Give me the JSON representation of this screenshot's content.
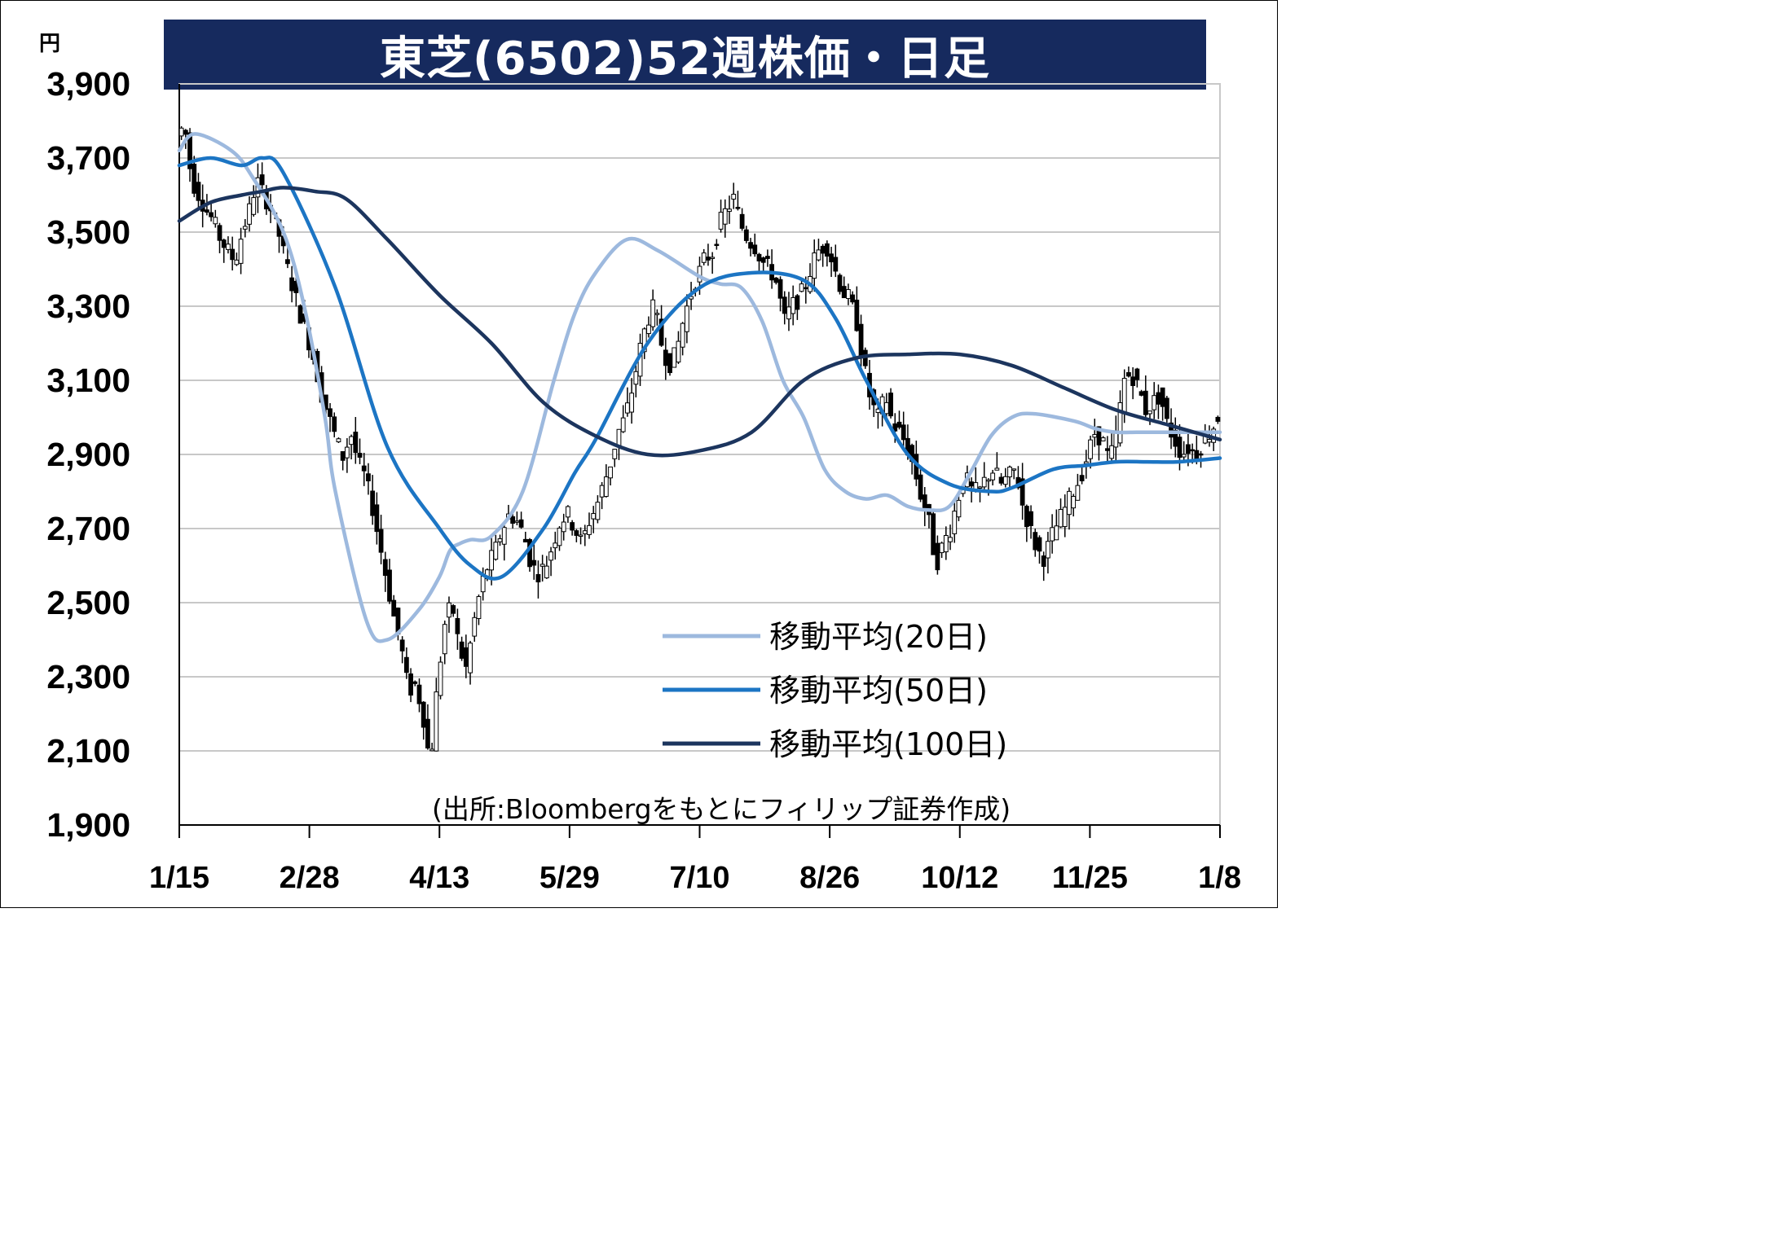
{
  "title": "東芝(6502)52週株価・日足",
  "source": "(出所:Bloombergをもとにフィリップ証券作成)",
  "chart_data": {
    "type": "candlestick",
    "title": "東芝(6502)52週株価・日足",
    "y_unit": "円",
    "ylim": [
      1900,
      3900
    ],
    "y_ticks": [
      "1,900",
      "2,100",
      "2,300",
      "2,500",
      "2,700",
      "2,900",
      "3,100",
      "3,300",
      "3,500",
      "3,700",
      "3,900"
    ],
    "x_ticks": [
      "1/15",
      "2/28",
      "4/13",
      "5/29",
      "7/10",
      "8/26",
      "10/12",
      "11/25",
      "1/8"
    ],
    "grid": true,
    "legend_position": "bottom-right",
    "colors": {
      "ma20": "#9db9de",
      "ma50": "#1c75c4",
      "ma100": "#1c355e",
      "candle": "#000000"
    },
    "price_path": [
      3760,
      3790,
      3640,
      3600,
      3560,
      3530,
      3480,
      3450,
      3420,
      3500,
      3560,
      3640,
      3600,
      3560,
      3500,
      3420,
      3350,
      3280,
      3220,
      3150,
      3060,
      3000,
      2940,
      2890,
      2960,
      2880,
      2840,
      2760,
      2660,
      2560,
      2460,
      2380,
      2260,
      2280,
      2200,
      2060,
      2280,
      2440,
      2500,
      2380,
      2320,
      2440,
      2540,
      2600,
      2640,
      2700,
      2740,
      2720,
      2680,
      2600,
      2580,
      2600,
      2660,
      2720,
      2740,
      2700,
      2660,
      2720,
      2760,
      2820,
      2880,
      2960,
      3000,
      3080,
      3180,
      3260,
      3300,
      3200,
      3140,
      3170,
      3260,
      3330,
      3380,
      3430,
      3440,
      3520,
      3560,
      3590,
      3520,
      3480,
      3460,
      3420,
      3400,
      3360,
      3260,
      3300,
      3320,
      3360,
      3420,
      3460,
      3460,
      3400,
      3340,
      3320,
      3260,
      3140,
      3040,
      3000,
      3060,
      2980,
      2960,
      2920,
      2860,
      2780,
      2720,
      2600,
      2660,
      2700,
      2780,
      2840,
      2800,
      2800,
      2840,
      2860,
      2820,
      2840,
      2860,
      2760,
      2700,
      2640,
      2620,
      2680,
      2720,
      2760,
      2800,
      2840,
      2900,
      2960,
      2940,
      2880,
      2960,
      3100,
      3120,
      3080,
      3020,
      3040,
      3060,
      2980,
      2940,
      2900,
      2920,
      2900,
      2940,
      2960,
      3000
    ],
    "series": [
      {
        "name": "移動平均(20日)",
        "x": [
          0,
          0.015,
          0.05,
          0.07,
          0.1,
          0.12,
          0.14,
          0.15,
          0.18,
          0.2,
          0.23,
          0.25,
          0.26,
          0.27,
          0.28,
          0.3,
          0.33,
          0.36,
          0.38,
          0.4,
          0.43,
          0.46,
          0.5,
          0.52,
          0.54,
          0.56,
          0.58,
          0.6,
          0.62,
          0.64,
          0.66,
          0.68,
          0.7,
          0.72,
          0.74,
          0.76,
          0.78,
          0.8,
          0.82,
          0.86,
          0.88,
          0.9,
          0.92,
          0.94,
          0.97,
          1.0
        ],
        "values": [
          3720,
          3765,
          3720,
          3650,
          3500,
          3300,
          3000,
          2800,
          2450,
          2400,
          2480,
          2570,
          2640,
          2660,
          2670,
          2680,
          2800,
          3100,
          3280,
          3390,
          3480,
          3450,
          3380,
          3360,
          3350,
          3260,
          3100,
          3000,
          2860,
          2800,
          2780,
          2790,
          2760,
          2750,
          2760,
          2850,
          2950,
          3000,
          3010,
          2990,
          2970,
          2960,
          2960,
          2960,
          2960,
          2960
        ]
      },
      {
        "name": "移動平均(50日)",
        "x": [
          0,
          0.03,
          0.06,
          0.08,
          0.1,
          0.15,
          0.2,
          0.25,
          0.28,
          0.31,
          0.35,
          0.38,
          0.4,
          0.45,
          0.5,
          0.55,
          0.6,
          0.63,
          0.66,
          0.7,
          0.74,
          0.78,
          0.8,
          0.84,
          0.87,
          0.9,
          0.93,
          0.96,
          1.0
        ],
        "values": [
          3680,
          3700,
          3680,
          3700,
          3660,
          3350,
          2920,
          2700,
          2600,
          2570,
          2700,
          2850,
          2940,
          3200,
          3350,
          3390,
          3370,
          3270,
          3100,
          2900,
          2820,
          2800,
          2810,
          2860,
          2870,
          2880,
          2880,
          2880,
          2890
        ]
      },
      {
        "name": "移動平均(100日)",
        "x": [
          0,
          0.03,
          0.06,
          0.08,
          0.1,
          0.13,
          0.16,
          0.2,
          0.25,
          0.3,
          0.35,
          0.4,
          0.45,
          0.5,
          0.55,
          0.6,
          0.65,
          0.7,
          0.75,
          0.8,
          0.85,
          0.9,
          0.95,
          1.0
        ],
        "values": [
          3530,
          3580,
          3600,
          3610,
          3620,
          3610,
          3590,
          3480,
          3330,
          3200,
          3040,
          2950,
          2900,
          2910,
          2960,
          3100,
          3160,
          3170,
          3170,
          3140,
          3080,
          3020,
          2980,
          2940
        ]
      }
    ]
  }
}
